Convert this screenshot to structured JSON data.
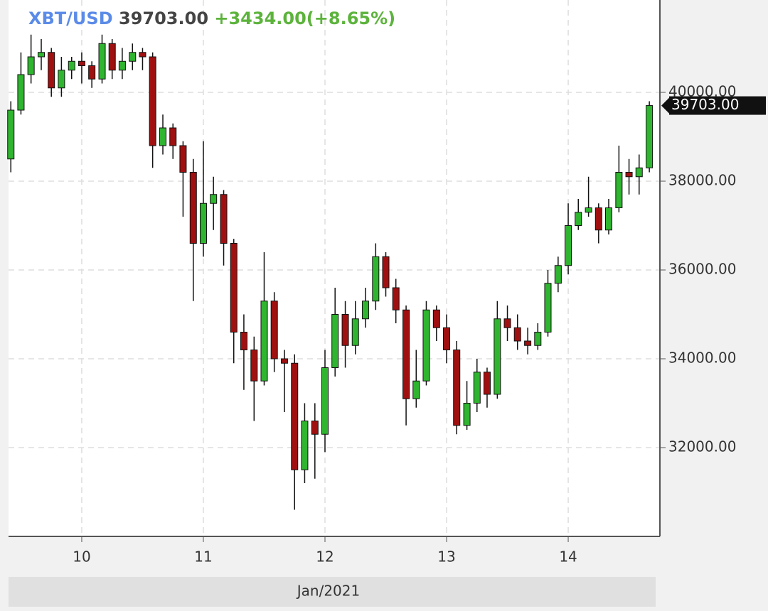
{
  "chart_data": {
    "type": "candlestick",
    "symbol": "XBT/USD",
    "last_price": {
      "value": 39703,
      "label": "39703.00"
    },
    "change_label": "+3434.00(+8.65%)",
    "xlabel": "Jan/2021",
    "x": [
      9.417,
      9.5,
      9.583,
      9.667,
      9.75,
      9.833,
      9.917,
      10,
      10.083,
      10.167,
      10.25,
      10.333,
      10.417,
      10.5,
      10.583,
      10.667,
      10.75,
      10.833,
      10.917,
      11,
      11.083,
      11.167,
      11.25,
      11.333,
      11.417,
      11.5,
      11.583,
      11.667,
      11.75,
      11.833,
      11.917,
      12,
      12.083,
      12.167,
      12.25,
      12.333,
      12.417,
      12.5,
      12.583,
      12.667,
      12.75,
      12.833,
      12.917,
      13,
      13.083,
      13.167,
      13.25,
      13.333,
      13.417,
      13.5,
      13.583,
      13.667,
      13.75,
      13.833,
      13.917,
      14,
      14.083,
      14.167,
      14.25,
      14.333,
      14.417,
      14.5,
      14.583,
      14.667
    ],
    "open": [
      38500,
      39600,
      40400,
      40800,
      40900,
      40100,
      40500,
      40700,
      40600,
      40300,
      41100,
      40500,
      40700,
      40900,
      40800,
      38800,
      39200,
      38800,
      38200,
      36600,
      37500,
      37700,
      36600,
      34600,
      34200,
      33500,
      35300,
      34000,
      33900,
      31500,
      32600,
      32300,
      33800,
      35000,
      34300,
      34900,
      35300,
      36300,
      35600,
      35100,
      33100,
      33500,
      35100,
      34700,
      34200,
      32500,
      33000,
      33700,
      33200,
      34900,
      34700,
      34400,
      34300,
      34600,
      35700,
      36100,
      37000,
      37300,
      37400,
      36900,
      37400,
      38200,
      38100,
      38300
    ],
    "high": [
      39800,
      40900,
      41300,
      41200,
      41000,
      40800,
      40800,
      40900,
      40700,
      41300,
      41200,
      41000,
      41100,
      41000,
      40900,
      39500,
      39300,
      38900,
      38500,
      38900,
      38100,
      37800,
      36700,
      35000,
      34500,
      36400,
      35500,
      34200,
      34100,
      33000,
      33000,
      34200,
      35600,
      35300,
      35300,
      35600,
      36600,
      36400,
      35800,
      35200,
      34200,
      35300,
      35200,
      35000,
      34400,
      33500,
      34000,
      33800,
      35300,
      35200,
      35000,
      34700,
      34800,
      36000,
      36300,
      37500,
      37600,
      38100,
      37500,
      37600,
      38800,
      38500,
      38600,
      39800
    ],
    "low": [
      38200,
      39500,
      40200,
      40500,
      39900,
      39900,
      40300,
      40200,
      40100,
      40200,
      40300,
      40300,
      40500,
      40500,
      38300,
      38600,
      38500,
      37200,
      35300,
      36300,
      36900,
      36100,
      33900,
      33300,
      32600,
      33400,
      33700,
      32800,
      30600,
      31200,
      31300,
      31900,
      33600,
      33800,
      34100,
      34700,
      35100,
      35400,
      34800,
      32500,
      32900,
      33400,
      34400,
      33900,
      32300,
      32400,
      32800,
      32900,
      33100,
      34400,
      34200,
      34100,
      34200,
      34500,
      35500,
      35900,
      36900,
      37200,
      36600,
      36800,
      37300,
      37700,
      37700,
      38200
    ],
    "close": [
      39600,
      40400,
      40800,
      40900,
      40100,
      40500,
      40700,
      40600,
      40300,
      41100,
      40500,
      40700,
      40900,
      40800,
      38800,
      39200,
      38800,
      38200,
      36600,
      37500,
      37700,
      36600,
      34600,
      34200,
      33500,
      35300,
      34000,
      33900,
      31500,
      32600,
      32300,
      33800,
      35000,
      34300,
      34900,
      35300,
      36300,
      35600,
      35100,
      33100,
      33500,
      35100,
      34700,
      34200,
      32500,
      33000,
      33700,
      33200,
      34900,
      34700,
      34400,
      34300,
      34600,
      35700,
      36100,
      37000,
      37300,
      37400,
      36900,
      37400,
      38200,
      38100,
      38300,
      39703
    ],
    "up_color": "#2fb52f",
    "down_color": "#a01010",
    "xlim": [
      9.398,
      14.754
    ],
    "xticks": [
      10,
      11,
      12,
      13,
      14
    ],
    "ylim": [
      30000,
      42080
    ],
    "yticks": [
      {
        "value": 32000,
        "label": "32000.00"
      },
      {
        "value": 34000,
        "label": "34000.00"
      },
      {
        "value": 36000,
        "label": "36000.00"
      },
      {
        "value": 38000,
        "label": "38000.00"
      },
      {
        "value": 40000,
        "label": "40000.00"
      }
    ],
    "grid": true
  }
}
